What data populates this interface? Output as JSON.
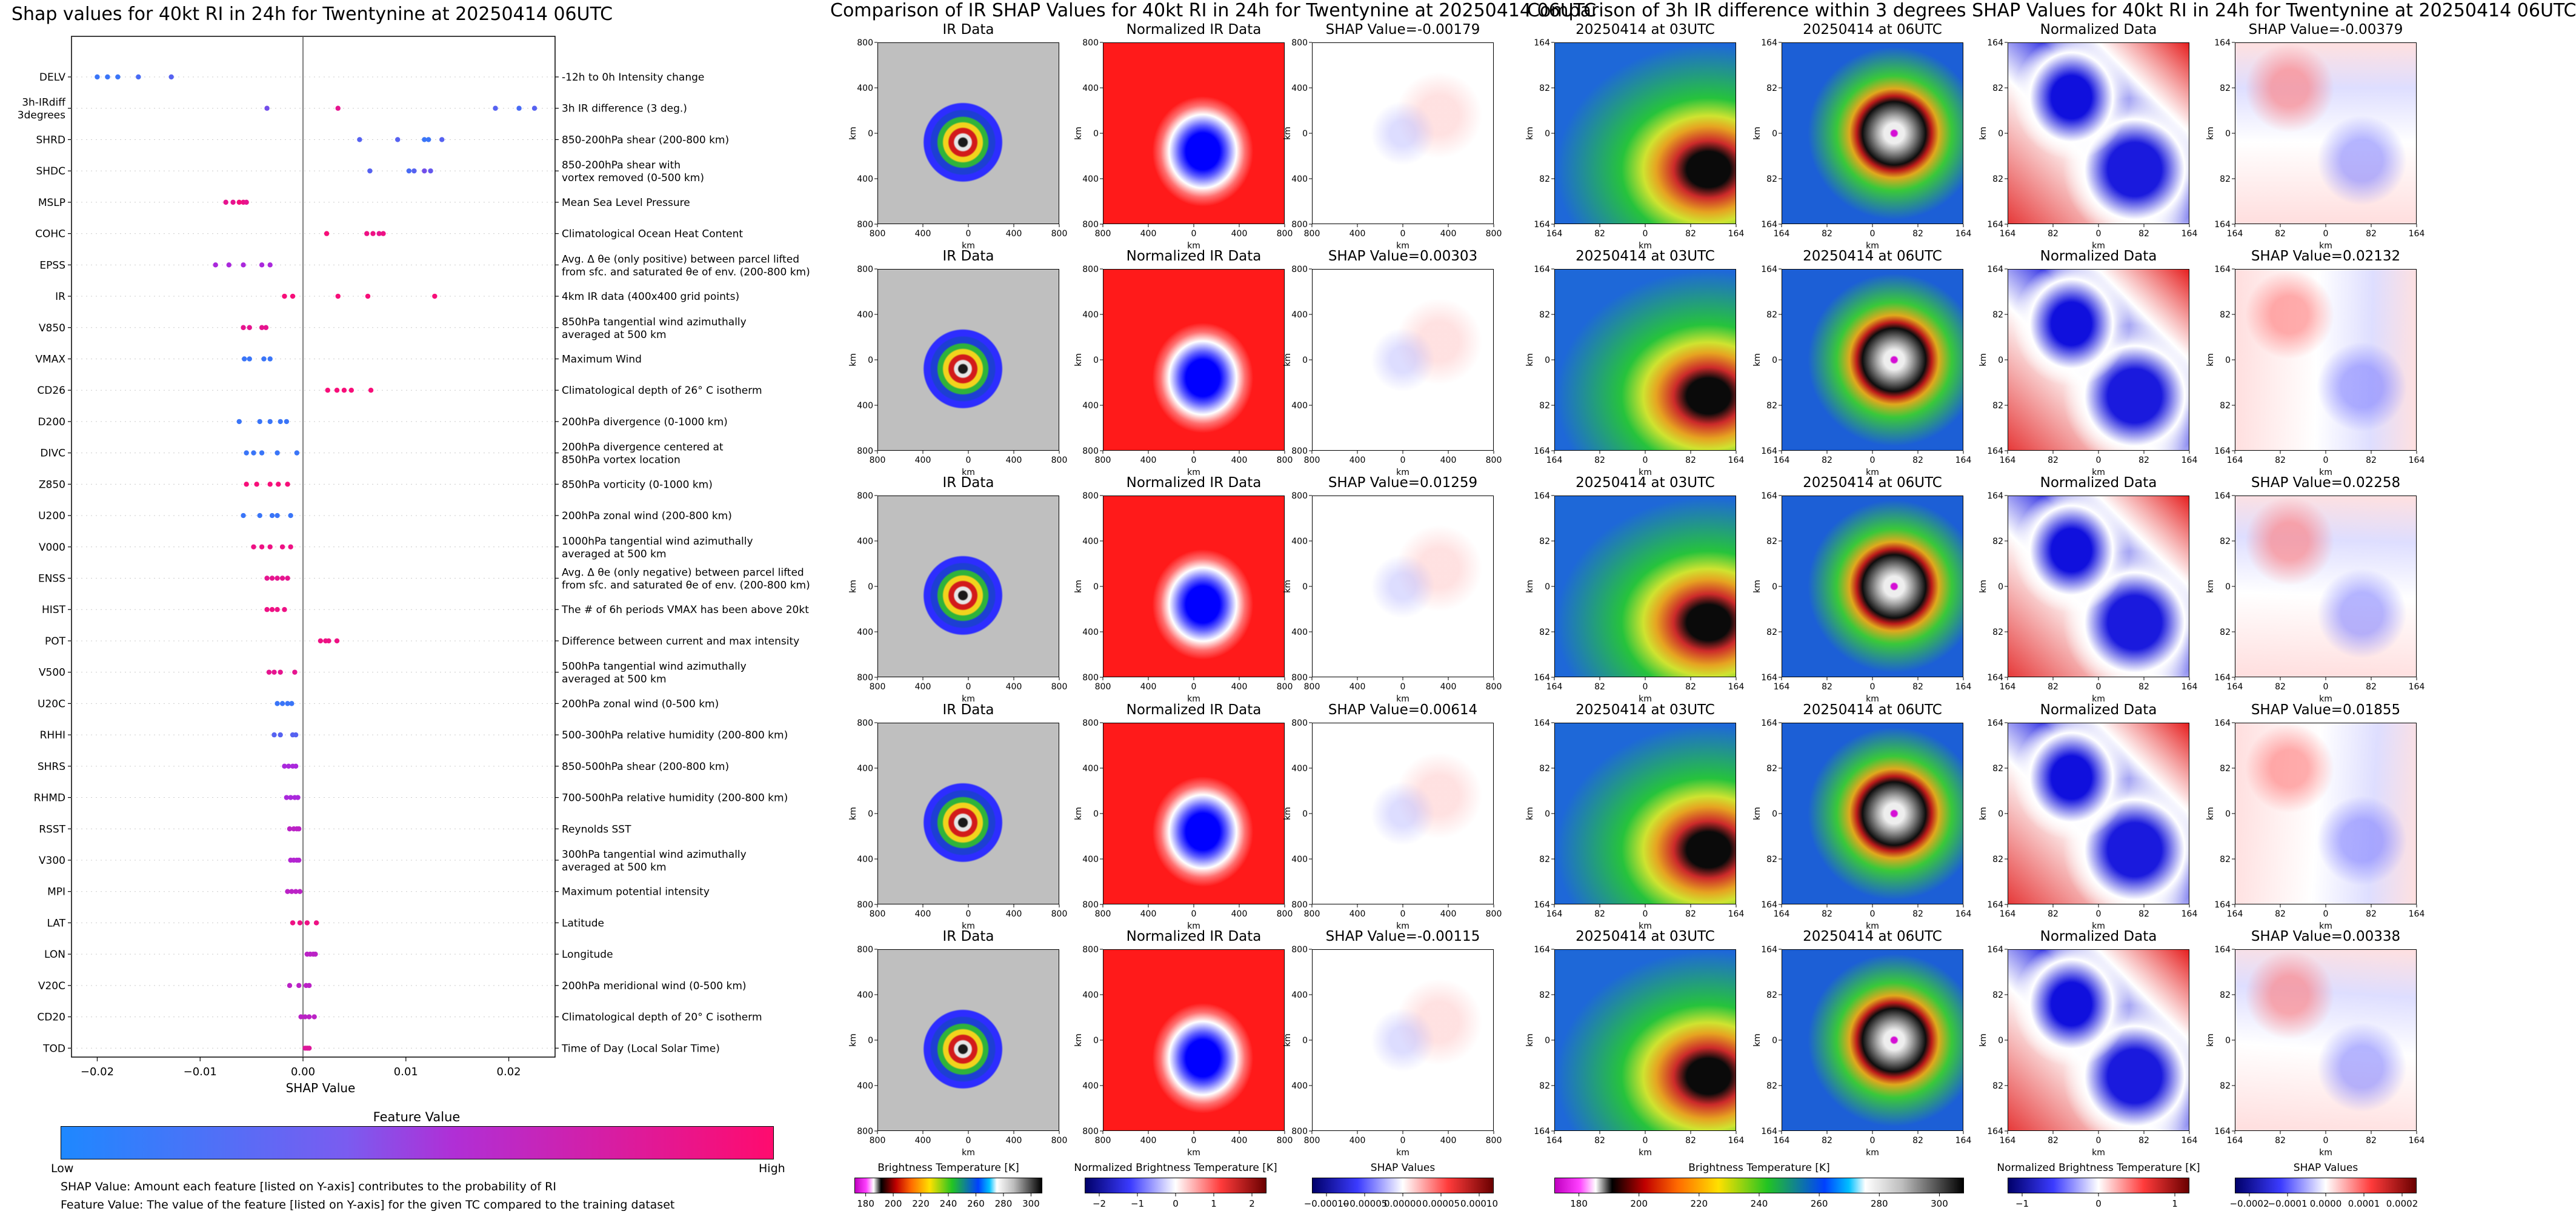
{
  "left_title": "Shap values for 40kt RI in 24h for Twentynine at 20250414 06UTC",
  "mid_title": "Comparison of IR SHAP Values for 40kt RI in 24h for Twentynine at 20250414 06UTC",
  "right_title": "Comparison of 3h IR difference within 3 degrees SHAP Values for 40kt RI in 24h for Twentynine at 20250414 06UTC",
  "legend_bar": {
    "title": "Feature Value",
    "low": "Low",
    "high": "High",
    "low_color": "#1e88ff",
    "high_color": "#ff0b6e"
  },
  "notes": [
    "SHAP Value: Amount each feature [listed on Y-axis] contributes to the probability of RI",
    "Feature Value: The value of the feature [listed on Y-axis] for the given TC compared to the training dataset"
  ],
  "ir_rows": [
    {
      "ir": "IR Data",
      "norm": "Normalized IR Data",
      "shap": "SHAP Value=-0.00179",
      "t03": "20250414 at 03UTC",
      "t06": "20250414 at 06UTC",
      "normd": "Normalized Data",
      "shap3h": "SHAP Value=-0.00379"
    },
    {
      "ir": "IR Data",
      "norm": "Normalized IR Data",
      "shap": "SHAP Value=0.00303",
      "t03": "20250414 at 03UTC",
      "t06": "20250414 at 06UTC",
      "normd": "Normalized Data",
      "shap3h": "SHAP Value=0.02132"
    },
    {
      "ir": "IR Data",
      "norm": "Normalized IR Data",
      "shap": "SHAP Value=0.01259",
      "t03": "20250414 at 03UTC",
      "t06": "20250414 at 06UTC",
      "normd": "Normalized Data",
      "shap3h": "SHAP Value=0.02258"
    },
    {
      "ir": "IR Data",
      "norm": "Normalized IR Data",
      "shap": "SHAP Value=0.00614",
      "t03": "20250414 at 03UTC",
      "t06": "20250414 at 06UTC",
      "normd": "Normalized Data",
      "shap3h": "SHAP Value=0.01855"
    },
    {
      "ir": "IR Data",
      "norm": "Normalized IR Data",
      "shap": "SHAP Value=-0.00115",
      "t03": "20250414 at 03UTC",
      "t06": "20250414 at 06UTC",
      "normd": "Normalized Data",
      "shap3h": "SHAP Value=0.00338"
    }
  ],
  "panel_axes": {
    "ir_ticks_y": [
      "800",
      "400",
      "0",
      "400",
      "800"
    ],
    "ir_ticks_x": [
      "800",
      "400",
      "0",
      "400",
      "800"
    ],
    "ir_unit": "km",
    "d3_ticks": [
      "164",
      "82",
      "0",
      "82",
      "164"
    ],
    "d3_unit": "km"
  },
  "colorbars": [
    {
      "label": "Brightness Temperature [K]",
      "ticks": [
        "180",
        "200",
        "220",
        "240",
        "260",
        "280",
        "300"
      ],
      "kind": "ir"
    },
    {
      "label": "Normalized Brightness Temperature [K]",
      "ticks": [
        "−2",
        "−1",
        "0",
        "1",
        "2"
      ],
      "kind": "div"
    },
    {
      "label": "SHAP Values",
      "ticks": [
        "−0.00010",
        "−0.00005",
        "0.00000",
        "0.00005",
        "0.00010"
      ],
      "kind": "div"
    },
    {
      "label": "Brightness Temperature [K]",
      "ticks": [
        "180",
        "200",
        "220",
        "240",
        "260",
        "280",
        "300"
      ],
      "kind": "ir"
    },
    {
      "label": "Normalized Brightness Temperature [K]",
      "ticks": [
        "−1",
        "0",
        "1"
      ],
      "kind": "div"
    },
    {
      "label": "SHAP Values",
      "ticks": [
        "−0.0002",
        "−0.0001",
        "0.0000",
        "0.0001",
        "0.0002"
      ],
      "kind": "div"
    }
  ],
  "chart_data": {
    "type": "scatter",
    "title": "Shap values for 40kt RI in 24h for Twentynine at 20250414 06UTC",
    "xlabel": "SHAP Value",
    "ylabel": "",
    "xlim": [
      -0.0225,
      0.0245
    ],
    "xticks": [
      "−0.02",
      "−0.01",
      "0.00",
      "0.01",
      "0.02"
    ],
    "xtick_values": [
      -0.02,
      -0.01,
      0.0,
      0.01,
      0.02
    ],
    "grid": false,
    "colorscale": {
      "low": "#1e88ff",
      "high": "#ff0b6e",
      "label": "Feature Value"
    },
    "features": [
      {
        "name": "DELV",
        "desc": "-12h to 0h Intensity change",
        "points": [
          [
            -0.02,
            0.1
          ],
          [
            -0.019,
            0.1
          ],
          [
            -0.018,
            0.1
          ],
          [
            -0.016,
            0.15
          ],
          [
            -0.0128,
            0.2
          ]
        ]
      },
      {
        "name": "3h-IRdiff\n3degrees",
        "desc": "3h IR difference (3 deg.)",
        "points": [
          [
            -0.0035,
            0.3
          ],
          [
            0.0034,
            0.85
          ],
          [
            0.0187,
            0.2
          ],
          [
            0.021,
            0.15
          ],
          [
            0.0225,
            0.2
          ]
        ]
      },
      {
        "name": "SHRD",
        "desc": "850-200hPa shear (200-800 km)",
        "points": [
          [
            0.0055,
            0.2
          ],
          [
            0.0092,
            0.2
          ],
          [
            0.0118,
            0.1
          ],
          [
            0.0122,
            0.1
          ],
          [
            0.0135,
            0.2
          ]
        ]
      },
      {
        "name": "SHDC",
        "desc": "850-200hPa shear with\nvortex removed (0-500 km)",
        "points": [
          [
            0.0065,
            0.2
          ],
          [
            0.0103,
            0.15
          ],
          [
            0.0108,
            0.2
          ],
          [
            0.0118,
            0.3
          ],
          [
            0.0124,
            0.25
          ]
        ]
      },
      {
        "name": "MSLP",
        "desc": "Mean Sea Level Pressure",
        "points": [
          [
            -0.0075,
            0.85
          ],
          [
            -0.0068,
            0.85
          ],
          [
            -0.0062,
            0.95
          ],
          [
            -0.0058,
            0.9
          ],
          [
            -0.0055,
            0.85
          ]
        ]
      },
      {
        "name": "COHC",
        "desc": "Climatological Ocean Heat Content",
        "points": [
          [
            0.0023,
            0.95
          ],
          [
            0.0062,
            0.9
          ],
          [
            0.0068,
            0.9
          ],
          [
            0.0074,
            0.85
          ],
          [
            0.0078,
            0.9
          ]
        ]
      },
      {
        "name": "EPSS",
        "desc": "Avg. Δ θe (only positive) between parcel lifted\nfrom sfc. and saturated θe of env. (200-800 km)",
        "points": [
          [
            -0.0085,
            0.5
          ],
          [
            -0.0072,
            0.5
          ],
          [
            -0.0058,
            0.5
          ],
          [
            -0.004,
            0.5
          ],
          [
            -0.0032,
            0.5
          ]
        ]
      },
      {
        "name": "IR",
        "desc": "4km IR data (400x400 grid points)",
        "points": [
          [
            -0.0018,
            0.95
          ],
          [
            -0.001,
            0.95
          ],
          [
            0.0034,
            0.95
          ],
          [
            0.0063,
            0.95
          ],
          [
            0.0128,
            0.95
          ]
        ]
      },
      {
        "name": "V850",
        "desc": "850hPa tangential wind azimuthally\naveraged at 500 km",
        "points": [
          [
            -0.0058,
            0.85
          ],
          [
            -0.0052,
            0.85
          ],
          [
            -0.004,
            0.85
          ],
          [
            -0.0036,
            0.85
          ]
        ]
      },
      {
        "name": "VMAX",
        "desc": "Maximum Wind",
        "points": [
          [
            -0.0057,
            0.1
          ],
          [
            -0.0052,
            0.1
          ],
          [
            -0.0038,
            0.1
          ],
          [
            -0.0032,
            0.1
          ]
        ]
      },
      {
        "name": "CD26",
        "desc": "Climatological depth of 26° C isotherm",
        "points": [
          [
            0.0024,
            0.95
          ],
          [
            0.0033,
            0.95
          ],
          [
            0.004,
            0.95
          ],
          [
            0.0047,
            0.95
          ],
          [
            0.0066,
            0.95
          ]
        ]
      },
      {
        "name": "D200",
        "desc": "200hPa divergence (0-1000 km)",
        "points": [
          [
            -0.0062,
            0.1
          ],
          [
            -0.0042,
            0.1
          ],
          [
            -0.0032,
            0.1
          ],
          [
            -0.0022,
            0.1
          ],
          [
            -0.0016,
            0.1
          ]
        ]
      },
      {
        "name": "DIVC",
        "desc": "200hPa divergence centered at\n850hPa vortex location",
        "points": [
          [
            -0.0055,
            0.1
          ],
          [
            -0.0048,
            0.1
          ],
          [
            -0.004,
            0.1
          ],
          [
            -0.0025,
            0.1
          ],
          [
            -0.0006,
            0.1
          ]
        ]
      },
      {
        "name": "Z850",
        "desc": "850hPa vorticity (0-1000 km)",
        "points": [
          [
            -0.0055,
            0.95
          ],
          [
            -0.0045,
            0.95
          ],
          [
            -0.0032,
            0.95
          ],
          [
            -0.0024,
            0.95
          ],
          [
            -0.0015,
            0.95
          ]
        ]
      },
      {
        "name": "U200",
        "desc": "200hPa zonal wind (200-800 km)",
        "points": [
          [
            -0.0058,
            0.1
          ],
          [
            -0.0042,
            0.1
          ],
          [
            -0.003,
            0.1
          ],
          [
            -0.0025,
            0.1
          ],
          [
            -0.0012,
            0.1
          ]
        ]
      },
      {
        "name": "V000",
        "desc": "1000hPa tangential wind azimuthally\naveraged at 500 km",
        "points": [
          [
            -0.0048,
            0.9
          ],
          [
            -0.004,
            0.9
          ],
          [
            -0.0032,
            0.9
          ],
          [
            -0.002,
            0.9
          ],
          [
            -0.0012,
            0.9
          ]
        ]
      },
      {
        "name": "ENSS",
        "desc": "Avg. Δ θe (only negative) between parcel lifted\nfrom sfc. and saturated θe of env. (200-800 km)",
        "points": [
          [
            -0.0035,
            0.85
          ],
          [
            -0.003,
            0.85
          ],
          [
            -0.0025,
            0.85
          ],
          [
            -0.002,
            0.85
          ],
          [
            -0.0015,
            0.85
          ]
        ]
      },
      {
        "name": "HIST",
        "desc": "The # of 6h periods VMAX has been above 20kt",
        "points": [
          [
            -0.0035,
            0.9
          ],
          [
            -0.003,
            0.9
          ],
          [
            -0.0025,
            0.9
          ],
          [
            -0.0018,
            0.9
          ]
        ]
      },
      {
        "name": "POT",
        "desc": "Difference between current and max intensity",
        "points": [
          [
            0.0017,
            0.9
          ],
          [
            0.0022,
            0.9
          ],
          [
            0.0025,
            0.9
          ],
          [
            0.0033,
            0.9
          ]
        ]
      },
      {
        "name": "V500",
        "desc": "500hPa tangential wind azimuthally\naveraged at 500 km",
        "points": [
          [
            -0.0033,
            0.85
          ],
          [
            -0.0028,
            0.85
          ],
          [
            -0.0022,
            0.85
          ],
          [
            -0.0008,
            0.85
          ]
        ]
      },
      {
        "name": "U20C",
        "desc": "200hPa zonal wind (0-500 km)",
        "points": [
          [
            -0.0025,
            0.1
          ],
          [
            -0.002,
            0.1
          ],
          [
            -0.0015,
            0.1
          ],
          [
            -0.0011,
            0.1
          ]
        ]
      },
      {
        "name": "RHHI",
        "desc": "500-300hPa relative humidity (200-800 km)",
        "points": [
          [
            -0.0028,
            0.2
          ],
          [
            -0.0022,
            0.2
          ],
          [
            -0.001,
            0.2
          ],
          [
            -0.0007,
            0.2
          ]
        ]
      },
      {
        "name": "SHRS",
        "desc": "850-500hPa shear (200-800 km)",
        "points": [
          [
            -0.0018,
            0.5
          ],
          [
            -0.0014,
            0.5
          ],
          [
            -0.001,
            0.5
          ],
          [
            -0.0007,
            0.5
          ]
        ]
      },
      {
        "name": "RHMD",
        "desc": "700-500hPa relative humidity (200-800 km)",
        "points": [
          [
            -0.0016,
            0.5
          ],
          [
            -0.0012,
            0.5
          ],
          [
            -0.0008,
            0.5
          ],
          [
            -0.0005,
            0.5
          ]
        ]
      },
      {
        "name": "RSST",
        "desc": "Reynolds SST",
        "points": [
          [
            -0.0013,
            0.6
          ],
          [
            -0.0009,
            0.6
          ],
          [
            -0.0006,
            0.6
          ],
          [
            -0.0004,
            0.6
          ]
        ]
      },
      {
        "name": "V300",
        "desc": "300hPa tangential wind azimuthally\naveraged at 500 km",
        "points": [
          [
            -0.0012,
            0.55
          ],
          [
            -0.0009,
            0.55
          ],
          [
            -0.0006,
            0.55
          ],
          [
            -0.0004,
            0.55
          ]
        ]
      },
      {
        "name": "MPI",
        "desc": "Maximum potential intensity",
        "points": [
          [
            -0.0015,
            0.6
          ],
          [
            -0.0011,
            0.6
          ],
          [
            -0.0007,
            0.6
          ],
          [
            -0.0003,
            0.6
          ]
        ]
      },
      {
        "name": "LAT",
        "desc": "Latitude",
        "points": [
          [
            -0.001,
            0.9
          ],
          [
            -0.0003,
            0.9
          ],
          [
            0.0004,
            0.9
          ],
          [
            0.0013,
            0.9
          ]
        ]
      },
      {
        "name": "LON",
        "desc": "Longitude",
        "points": [
          [
            0.0004,
            0.6
          ],
          [
            0.0007,
            0.6
          ],
          [
            0.001,
            0.6
          ],
          [
            0.0012,
            0.6
          ]
        ]
      },
      {
        "name": "V20C",
        "desc": "200hPa meridional wind (0-500 km)",
        "points": [
          [
            -0.0013,
            0.6
          ],
          [
            -0.0004,
            0.6
          ],
          [
            0.0003,
            0.6
          ],
          [
            0.0006,
            0.6
          ]
        ]
      },
      {
        "name": "CD20",
        "desc": "Climatological depth of 20° C isotherm",
        "points": [
          [
            -0.0002,
            0.6
          ],
          [
            0.0002,
            0.6
          ],
          [
            0.0006,
            0.6
          ],
          [
            0.0011,
            0.6
          ]
        ]
      },
      {
        "name": "TOD",
        "desc": "Time of Day (Local Solar Time)",
        "points": [
          [
            0.0002,
            0.8
          ],
          [
            0.0004,
            0.8
          ],
          [
            0.0006,
            0.8
          ]
        ]
      }
    ]
  }
}
